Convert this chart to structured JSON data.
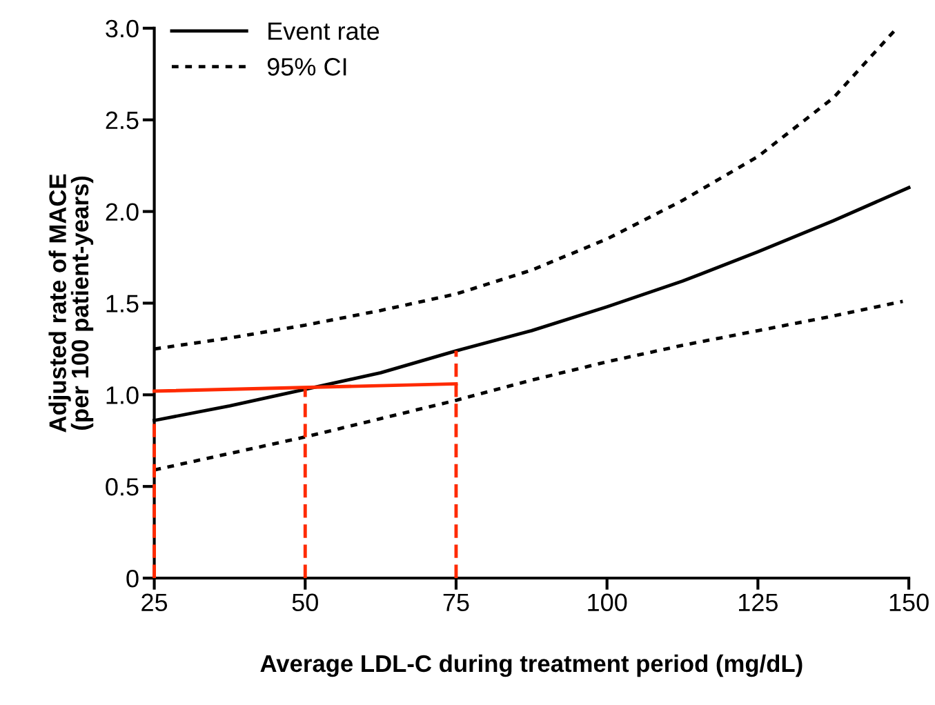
{
  "chart_data": {
    "type": "line",
    "xlabel": "Average LDL-C during treatment period (mg/dL)",
    "ylabel": "Adjusted rate of MACE\n(per 100 patient-years)",
    "xlim": [
      25,
      150
    ],
    "ylim": [
      0,
      3.0
    ],
    "xticks": [
      25,
      50,
      75,
      100,
      125,
      150
    ],
    "yticks": [
      {
        "value": 0,
        "label": "0"
      },
      0.5,
      {
        "value": 1,
        "label": "1.0"
      },
      1.5,
      {
        "value": 2,
        "label": "2.0"
      },
      2.5,
      {
        "value": 3,
        "label": "3.0"
      }
    ],
    "grid": false,
    "legend": "top left",
    "marker": "none",
    "series": [
      {
        "name": "Event rate",
        "color": "#000000",
        "line_style": "solid",
        "x": [
          25,
          37.5,
          50,
          62.5,
          75,
          87.5,
          100,
          112.5,
          125,
          137.5,
          150
        ],
        "values": [
          0.86,
          0.94,
          1.03,
          1.12,
          1.24,
          1.35,
          1.48,
          1.62,
          1.78,
          1.95,
          2.13
        ]
      },
      {
        "name": "95% CI",
        "color": "#000000",
        "line_style": "dotted",
        "x": [
          25,
          37.5,
          50,
          62.5,
          75,
          87.5,
          100,
          112.5,
          125,
          137.5,
          148
        ],
        "values": [
          1.25,
          1.31,
          1.38,
          1.46,
          1.55,
          1.68,
          1.85,
          2.06,
          2.3,
          2.62,
          3.0
        ]
      },
      {
        "color": "#000000",
        "line_style": "dotted",
        "x": [
          25,
          37.5,
          50,
          62.5,
          75,
          87.5,
          100,
          112.5,
          125,
          137.5,
          149
        ],
        "values": [
          0.59,
          0.68,
          0.77,
          0.87,
          0.97,
          1.08,
          1.18,
          1.27,
          1.35,
          1.43,
          1.51
        ]
      },
      {
        "color": "#ff2a00",
        "line_style": "solid",
        "x": [
          25,
          75
        ],
        "values": [
          1.02,
          1.06
        ]
      },
      {
        "color": "#ff2a00",
        "line_style": "dashed",
        "x": [
          25,
          25
        ],
        "values": [
          0,
          0.86
        ]
      },
      {
        "color": "#ff2a00",
        "line_style": "dashed",
        "x": [
          50,
          50
        ],
        "values": [
          0,
          1.03
        ]
      },
      {
        "color": "#ff2a00",
        "line_style": "dashed",
        "x": [
          75,
          75
        ],
        "values": [
          0,
          1.24
        ]
      }
    ]
  }
}
